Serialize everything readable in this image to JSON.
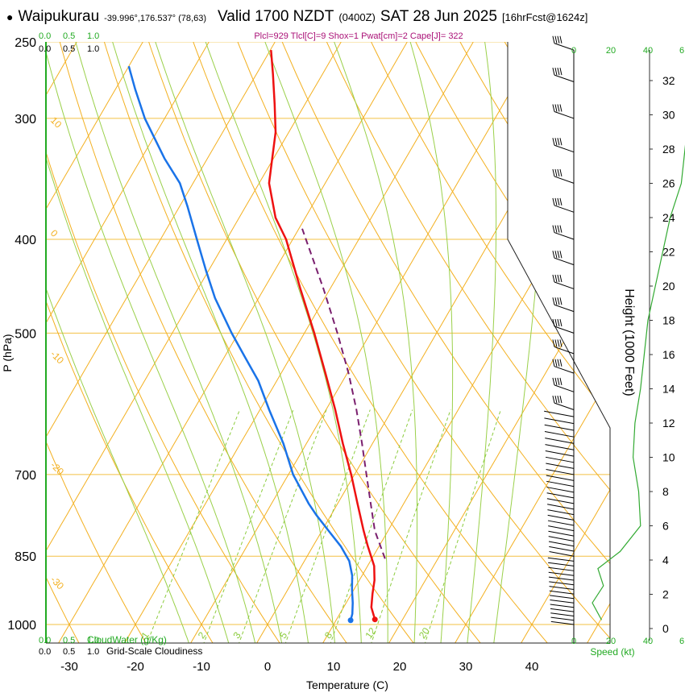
{
  "header": {
    "bullet": "●",
    "station": "Waipukurau",
    "coords": "-39.996°,176.537° (78,63)",
    "valid": "Valid 1700 NZDT",
    "utc": "(0400Z)",
    "date": "SAT 28 Jun 2025",
    "forecast": "[16hrFcst@1624z]",
    "indices": "Plcl=929 Tlcl[C]=9 Shox=1 Pwat[cm]=2 Cape[J]= 322"
  },
  "axes": {
    "ylabel": "P (hPa)",
    "xlabel": "Temperature (C)",
    "height_label": "Height (1000 Feet)",
    "speed_label": "Speed (kt)",
    "cloud_water_label": "CloudWater (g/Kg)",
    "cloudiness_label": "Grid-Scale Cloudiness",
    "top_cw_ticks": [
      "0.0",
      "0.5",
      "1.0"
    ],
    "top_cl_ticks": [
      "0.0",
      "0.5",
      "1.0"
    ],
    "bot_cw_ticks": [
      "0.0",
      "0.5",
      "1.0"
    ],
    "bot_cl_ticks": [
      "0.0",
      "0.5",
      "1.0"
    ]
  },
  "chart_data": {
    "type": "skew-t",
    "title": "Waipukurau Valid 1700 NZDT SAT 28 Jun 2025",
    "pressure_ticks": [
      250,
      300,
      400,
      500,
      700,
      850,
      1000
    ],
    "temperature_ticks": [
      -30,
      -20,
      -10,
      0,
      10,
      20,
      30,
      40
    ],
    "xlim": [
      -33,
      36
    ],
    "plim": [
      250,
      1050
    ],
    "temperature_profile": [
      {
        "p": 988,
        "t": 15.8
      },
      {
        "p": 960,
        "t": 14.2
      },
      {
        "p": 930,
        "t": 13.2
      },
      {
        "p": 900,
        "t": 12.3
      },
      {
        "p": 870,
        "t": 11.0
      },
      {
        "p": 855,
        "t": 10.0
      },
      {
        "p": 830,
        "t": 8.3
      },
      {
        "p": 800,
        "t": 6.3
      },
      {
        "p": 750,
        "t": 3.0
      },
      {
        "p": 700,
        "t": -0.5
      },
      {
        "p": 650,
        "t": -4.5
      },
      {
        "p": 600,
        "t": -8.6
      },
      {
        "p": 550,
        "t": -13.3
      },
      {
        "p": 500,
        "t": -18.5
      },
      {
        "p": 450,
        "t": -24.5
      },
      {
        "p": 400,
        "t": -31.0
      },
      {
        "p": 380,
        "t": -34.5
      },
      {
        "p": 350,
        "t": -38.5
      },
      {
        "p": 330,
        "t": -40.2
      },
      {
        "p": 310,
        "t": -42.0
      },
      {
        "p": 290,
        "t": -44.6
      },
      {
        "p": 270,
        "t": -47.5
      },
      {
        "p": 255,
        "t": -49.9
      }
    ],
    "dewpoint_profile": [
      {
        "p": 990,
        "t": 12.2
      },
      {
        "p": 975,
        "t": 11.9
      },
      {
        "p": 950,
        "t": 11.0
      },
      {
        "p": 920,
        "t": 9.7
      },
      {
        "p": 890,
        "t": 8.5
      },
      {
        "p": 860,
        "t": 6.8
      },
      {
        "p": 830,
        "t": 4.2
      },
      {
        "p": 800,
        "t": 1.0
      },
      {
        "p": 770,
        "t": -2.3
      },
      {
        "p": 750,
        "t": -4.4
      },
      {
        "p": 700,
        "t": -9.3
      },
      {
        "p": 650,
        "t": -13.5
      },
      {
        "p": 600,
        "t": -18.6
      },
      {
        "p": 560,
        "t": -22.8
      },
      {
        "p": 530,
        "t": -26.8
      },
      {
        "p": 500,
        "t": -31.0
      },
      {
        "p": 460,
        "t": -36.6
      },
      {
        "p": 430,
        "t": -40.5
      },
      {
        "p": 400,
        "t": -44.5
      },
      {
        "p": 370,
        "t": -48.8
      },
      {
        "p": 350,
        "t": -52.0
      },
      {
        "p": 330,
        "t": -56.5
      },
      {
        "p": 300,
        "t": -63.0
      },
      {
        "p": 280,
        "t": -67.0
      },
      {
        "p": 265,
        "t": -70.0
      }
    ],
    "parcel_profile": [
      {
        "p": 855,
        "t": 12.0
      },
      {
        "p": 800,
        "t": 8.0
      },
      {
        "p": 750,
        "t": 5.0
      },
      {
        "p": 700,
        "t": 1.8
      },
      {
        "p": 650,
        "t": -1.6
      },
      {
        "p": 600,
        "t": -5.4
      },
      {
        "p": 550,
        "t": -9.8
      },
      {
        "p": 500,
        "t": -15.0
      },
      {
        "p": 450,
        "t": -21.0
      },
      {
        "p": 400,
        "t": -28.0
      },
      {
        "p": 390,
        "t": -29.5
      }
    ],
    "surface_temperature": 15.8,
    "surface_dewpoint": 12.2,
    "isotherm_labels": [
      {
        "t": 0,
        "text": "0"
      },
      {
        "t": 10,
        "text": "10"
      },
      {
        "t": 20,
        "text": "20"
      },
      {
        "t": 30,
        "text": "30"
      }
    ],
    "dry_adiabat_labels": [
      "10",
      "0",
      "-10",
      "-20",
      "-30"
    ],
    "mixing_ratio_labels": [
      "1",
      "2",
      "3",
      "5",
      "8",
      "12",
      "20"
    ],
    "mixing_ratios": [
      1,
      2,
      3,
      5,
      8,
      12,
      20
    ],
    "height_ticks": [
      "0",
      "2",
      "4",
      "6",
      "8",
      "10",
      "12",
      "14",
      "16",
      "18",
      "20",
      "22",
      "24",
      "26",
      "28",
      "30",
      "32"
    ],
    "speed_ticks": [
      "0",
      "20",
      "40",
      "6"
    ],
    "wind_speed_profile": [
      {
        "h_kft": 0.5,
        "s": 15
      },
      {
        "h_kft": 1.5,
        "s": 10
      },
      {
        "h_kft": 2.5,
        "s": 16
      },
      {
        "h_kft": 3.5,
        "s": 13
      },
      {
        "h_kft": 4.5,
        "s": 25
      },
      {
        "h_kft": 6,
        "s": 36
      },
      {
        "h_kft": 8,
        "s": 35
      },
      {
        "h_kft": 10,
        "s": 32
      },
      {
        "h_kft": 12,
        "s": 33
      },
      {
        "h_kft": 14,
        "s": 36
      },
      {
        "h_kft": 16,
        "s": 38
      },
      {
        "h_kft": 18,
        "s": 40
      },
      {
        "h_kft": 20,
        "s": 44
      },
      {
        "h_kft": 22,
        "s": 48
      },
      {
        "h_kft": 24,
        "s": 52
      },
      {
        "h_kft": 26,
        "s": 58
      },
      {
        "h_kft": 28,
        "s": 60
      },
      {
        "h_kft": 30,
        "s": 62
      },
      {
        "h_kft": 32,
        "s": 63
      },
      {
        "h_kft": 33.5,
        "s": 62
      }
    ],
    "wind_barb_pressures": [
      1000,
      990,
      980,
      970,
      960,
      950,
      940,
      930,
      920,
      910,
      900,
      890,
      880,
      870,
      860,
      850,
      840,
      830,
      820,
      810,
      800,
      790,
      780,
      770,
      760,
      750,
      740,
      730,
      720,
      710,
      700,
      690,
      680,
      670,
      660,
      650,
      640,
      630,
      620,
      610,
      600,
      575,
      550,
      525,
      500,
      475,
      450,
      425,
      400,
      375,
      350,
      325,
      300,
      275,
      255
    ],
    "colors": {
      "temperature": "#ee1111",
      "dewpoint": "#1a73e8",
      "parcel": "#7a1f6e",
      "isobar": "#f3c043",
      "isotherm": "#f3b020",
      "dry_adiabat": "#f3b020",
      "moist_adiabat": "#9ad04a",
      "mixing_ratio": "#8ccc3e",
      "height_axis": "#333333",
      "speed_line": "#33aa33",
      "green_text": "#22aa22",
      "index_text": "#aa1177"
    }
  }
}
